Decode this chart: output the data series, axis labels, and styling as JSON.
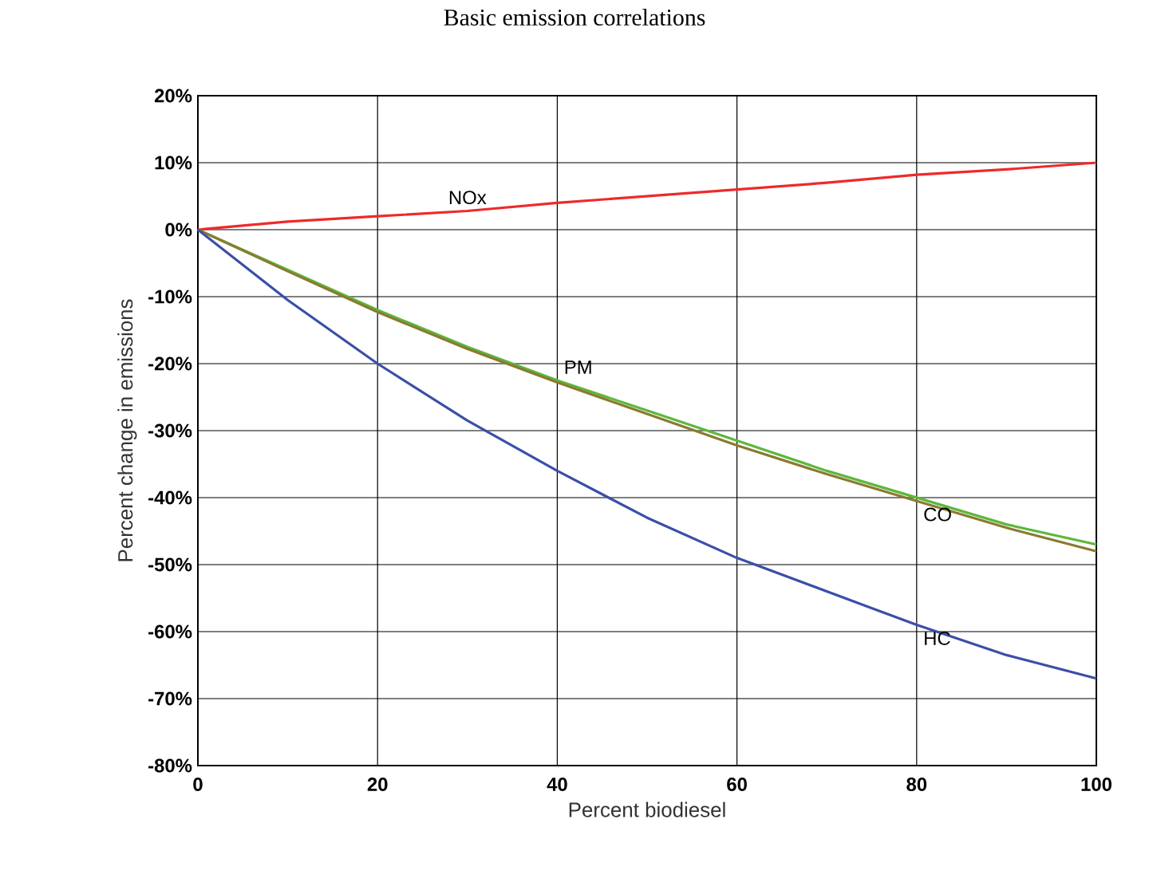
{
  "chart_data": {
    "type": "line",
    "title": "Basic emission correlations",
    "xlabel": "Percent biodiesel",
    "ylabel": "Percent change in emissions",
    "x": [
      0,
      10,
      20,
      30,
      40,
      50,
      60,
      70,
      80,
      90,
      100
    ],
    "series": [
      {
        "name": "NOx",
        "color": "#ee2a2a",
        "values": [
          0,
          1.2,
          2,
          2.8,
          4,
          5,
          6,
          7,
          8.2,
          9,
          10
        ]
      },
      {
        "name": "PM",
        "color": "#5cb83a",
        "values": [
          0,
          -6,
          -12,
          -17.5,
          -22.5,
          -27,
          -31.5,
          -36,
          -40,
          -44,
          -47
        ]
      },
      {
        "name": "CO",
        "color": "#8a7a32",
        "values": [
          0,
          -6.2,
          -12.3,
          -17.8,
          -22.8,
          -27.5,
          -32.2,
          -36.5,
          -40.5,
          -44.5,
          -48
        ]
      },
      {
        "name": "HC",
        "color": "#3a4fa8",
        "values": [
          0,
          -10.5,
          -20,
          -28.5,
          -36,
          -43,
          -49,
          -54,
          -59,
          -63.5,
          -67
        ]
      }
    ],
    "xlim": [
      0,
      100
    ],
    "ylim": [
      -80,
      20
    ],
    "xticks": [
      0,
      20,
      40,
      60,
      80,
      100
    ],
    "yticks": [
      {
        "value": -80,
        "label": "-80%"
      },
      {
        "value": -70,
        "label": "-70%"
      },
      {
        "value": -60,
        "label": "-60%"
      },
      {
        "value": -50,
        "label": "-50%"
      },
      {
        "value": -40,
        "label": "-40%"
      },
      {
        "value": -30,
        "label": "-30%"
      },
      {
        "value": -20,
        "label": "-20%"
      },
      {
        "value": -10,
        "label": "-10%"
      },
      {
        "value": 0,
        "label": "0%"
      },
      {
        "value": 10,
        "label": "10%"
      },
      {
        "value": 20,
        "label": "20%"
      }
    ],
    "grid": true,
    "legend": false,
    "marker": "none",
    "line_style": "solid"
  }
}
